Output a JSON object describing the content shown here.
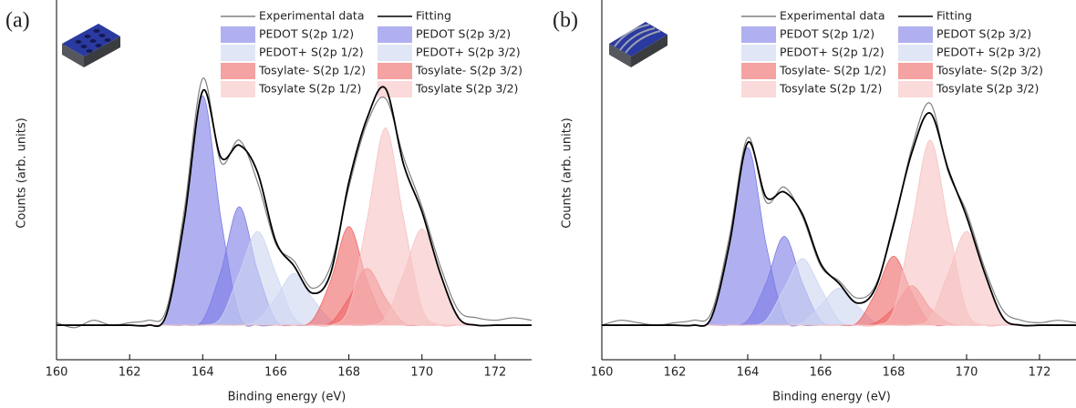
{
  "chart_data": [
    {
      "type": "area",
      "panel_label": "(a)",
      "x_label": "Binding energy (eV)",
      "y_label": "Counts (arb. units)",
      "x": [
        160,
        160.5,
        161,
        161.5,
        162,
        162.5,
        163,
        163.5,
        164,
        164.5,
        165,
        165.5,
        166,
        166.5,
        167,
        167.5,
        168,
        168.5,
        169,
        169.5,
        170,
        170.5,
        171,
        171.5,
        172,
        172.5,
        173
      ],
      "xlim": [
        160,
        173
      ],
      "xticks": [
        160,
        162,
        164,
        166,
        168,
        170,
        172
      ],
      "ylim": [
        -14,
        130
      ],
      "series": [
        {
          "name": "Experimental data",
          "style": "line",
          "color": "#808080",
          "values": [
            1,
            -1,
            2,
            0,
            1,
            2,
            6,
            47,
            100,
            66,
            75,
            58,
            33,
            26,
            15,
            24,
            56,
            82,
            92,
            68,
            48,
            24,
            6,
            3,
            2,
            3,
            2
          ]
        },
        {
          "name": "Fitting",
          "style": "line",
          "color": "#000000",
          "values": [
            0,
            0,
            0,
            0,
            0,
            0,
            4,
            43,
            95,
            68,
            73,
            62,
            34,
            24,
            13,
            21,
            58,
            84,
            96,
            65,
            46,
            21,
            3,
            0,
            0,
            0,
            0
          ]
        },
        {
          "name": "PEDOT S(2p 1/2)",
          "style": "area",
          "color": "#7b7be6",
          "values": [
            0,
            0,
            0,
            0,
            0,
            0,
            0,
            0,
            2,
            22,
            48,
            22,
            2,
            0,
            0,
            0,
            0,
            0,
            0,
            0,
            0,
            0,
            0,
            0,
            0,
            0,
            0
          ]
        },
        {
          "name": "PEDOT S(2p 3/2)",
          "style": "area",
          "color": "#7b7be6",
          "values": [
            0,
            0,
            0,
            0,
            0,
            0,
            4,
            43,
            93,
            43,
            4,
            0,
            0,
            0,
            0,
            0,
            0,
            0,
            0,
            0,
            0,
            0,
            0,
            0,
            0,
            0,
            0
          ]
        },
        {
          "name": "PEDOT+ S(2p 1/2)",
          "style": "area",
          "color": "#cdd5f2",
          "values": [
            0,
            0,
            0,
            0,
            0,
            0,
            0,
            0,
            0,
            0,
            0,
            2,
            11,
            21,
            11,
            2,
            0,
            0,
            0,
            0,
            0,
            0,
            0,
            0,
            0,
            0,
            0
          ]
        },
        {
          "name": "PEDOT+ S(2p 3/2)",
          "style": "area",
          "color": "#cdd5f2",
          "values": [
            0,
            0,
            0,
            0,
            0,
            0,
            0,
            0,
            0,
            3,
            21,
            38,
            21,
            3,
            0,
            0,
            0,
            0,
            0,
            0,
            0,
            0,
            0,
            0,
            0,
            0,
            0
          ]
        },
        {
          "name": "Tosylate- S(2p 1/2)",
          "style": "area",
          "color": "#ef6464",
          "values": [
            0,
            0,
            0,
            0,
            0,
            0,
            0,
            0,
            0,
            0,
            0,
            0,
            0,
            0,
            0,
            1,
            11,
            23,
            11,
            1,
            0,
            0,
            0,
            0,
            0,
            0,
            0
          ]
        },
        {
          "name": "Tosylate- S(2p 3/2)",
          "style": "area",
          "color": "#ef6464",
          "values": [
            0,
            0,
            0,
            0,
            0,
            0,
            0,
            0,
            0,
            0,
            0,
            0,
            0,
            0,
            2,
            18,
            40,
            18,
            2,
            0,
            0,
            0,
            0,
            0,
            0,
            0,
            0
          ]
        },
        {
          "name": "Tosylate S(2p 1/2)",
          "style": "area",
          "color": "#f7c2c2",
          "values": [
            0,
            0,
            0,
            0,
            0,
            0,
            0,
            0,
            0,
            0,
            0,
            0,
            0,
            0,
            0,
            0,
            0,
            0,
            3,
            21,
            39,
            21,
            3,
            0,
            0,
            0,
            0
          ]
        },
        {
          "name": "Tosylate S(2p 3/2)",
          "style": "area",
          "color": "#f7c2c2",
          "values": [
            0,
            0,
            0,
            0,
            0,
            0,
            0,
            0,
            0,
            0,
            0,
            0,
            0,
            0,
            0,
            0,
            7,
            43,
            80,
            43,
            7,
            0,
            0,
            0,
            0,
            0,
            0
          ]
        }
      ]
    },
    {
      "type": "area",
      "panel_label": "(b)",
      "x_label": "Binding energy (eV)",
      "y_label": "Counts (arb. units)",
      "x": [
        160,
        160.5,
        161,
        161.5,
        162,
        162.5,
        163,
        163.5,
        164,
        164.5,
        165,
        165.5,
        166,
        166.5,
        167,
        167.5,
        168,
        168.5,
        169,
        169.5,
        170,
        170.5,
        171,
        171.5,
        172,
        172.5,
        173
      ],
      "xlim": [
        160,
        173
      ],
      "xticks": [
        160,
        162,
        164,
        166,
        168,
        170,
        172
      ],
      "ylim": [
        -14,
        130
      ],
      "series": [
        {
          "name": "Experimental data",
          "style": "line",
          "color": "#808080",
          "values": [
            0,
            2,
            1,
            0,
            1,
            2,
            5,
            36,
            76,
            50,
            56,
            44,
            24,
            18,
            11,
            16,
            40,
            72,
            90,
            62,
            46,
            23,
            6,
            2,
            1,
            2,
            1
          ]
        },
        {
          "name": "Fitting",
          "style": "line",
          "color": "#000000",
          "values": [
            0,
            0,
            0,
            0,
            0,
            0,
            3,
            33,
            74,
            52,
            54,
            45,
            25,
            17,
            9,
            15,
            41,
            70,
            86,
            63,
            44,
            21,
            3,
            0,
            0,
            0,
            0
          ]
        },
        {
          "name": "PEDOT S(2p 1/2)",
          "style": "area",
          "color": "#7b7be6",
          "values": [
            0,
            0,
            0,
            0,
            0,
            0,
            0,
            0,
            2,
            17,
            36,
            17,
            2,
            0,
            0,
            0,
            0,
            0,
            0,
            0,
            0,
            0,
            0,
            0,
            0,
            0,
            0
          ]
        },
        {
          "name": "PEDOT S(2p 3/2)",
          "style": "area",
          "color": "#7b7be6",
          "values": [
            0,
            0,
            0,
            0,
            0,
            0,
            3,
            33,
            72,
            33,
            3,
            0,
            0,
            0,
            0,
            0,
            0,
            0,
            0,
            0,
            0,
            0,
            0,
            0,
            0,
            0,
            0
          ]
        },
        {
          "name": "PEDOT+ S(2p 1/2)",
          "style": "area",
          "color": "#cdd5f2",
          "values": [
            0,
            0,
            0,
            0,
            0,
            0,
            0,
            0,
            0,
            0,
            0,
            1,
            8,
            15,
            8,
            1,
            0,
            0,
            0,
            0,
            0,
            0,
            0,
            0,
            0,
            0,
            0
          ]
        },
        {
          "name": "PEDOT+ S(2p 3/2)",
          "style": "area",
          "color": "#cdd5f2",
          "values": [
            0,
            0,
            0,
            0,
            0,
            0,
            0,
            0,
            0,
            2,
            15,
            27,
            15,
            2,
            0,
            0,
            0,
            0,
            0,
            0,
            0,
            0,
            0,
            0,
            0,
            0,
            0
          ]
        },
        {
          "name": "Tosylate- S(2p 1/2)",
          "style": "area",
          "color": "#ef6464",
          "values": [
            0,
            0,
            0,
            0,
            0,
            0,
            0,
            0,
            0,
            0,
            0,
            0,
            0,
            0,
            0,
            1,
            7,
            16,
            7,
            1,
            0,
            0,
            0,
            0,
            0,
            0,
            0
          ]
        },
        {
          "name": "Tosylate- S(2p 3/2)",
          "style": "area",
          "color": "#ef6464",
          "values": [
            0,
            0,
            0,
            0,
            0,
            0,
            0,
            0,
            0,
            0,
            0,
            0,
            0,
            0,
            1,
            13,
            28,
            13,
            1,
            0,
            0,
            0,
            0,
            0,
            0,
            0,
            0
          ]
        },
        {
          "name": "Tosylate S(2p 1/2)",
          "style": "area",
          "color": "#f7c2c2",
          "values": [
            0,
            0,
            0,
            0,
            0,
            0,
            0,
            0,
            0,
            0,
            0,
            0,
            0,
            0,
            0,
            0,
            0,
            0,
            3,
            21,
            38,
            21,
            3,
            0,
            0,
            0,
            0
          ]
        },
        {
          "name": "Tosylate S(2p 3/2)",
          "style": "area",
          "color": "#f7c2c2",
          "values": [
            0,
            0,
            0,
            0,
            0,
            0,
            0,
            0,
            0,
            0,
            0,
            0,
            0,
            0,
            0,
            0,
            6,
            41,
            75,
            41,
            6,
            0,
            0,
            0,
            0,
            0,
            0
          ]
        }
      ]
    }
  ]
}
